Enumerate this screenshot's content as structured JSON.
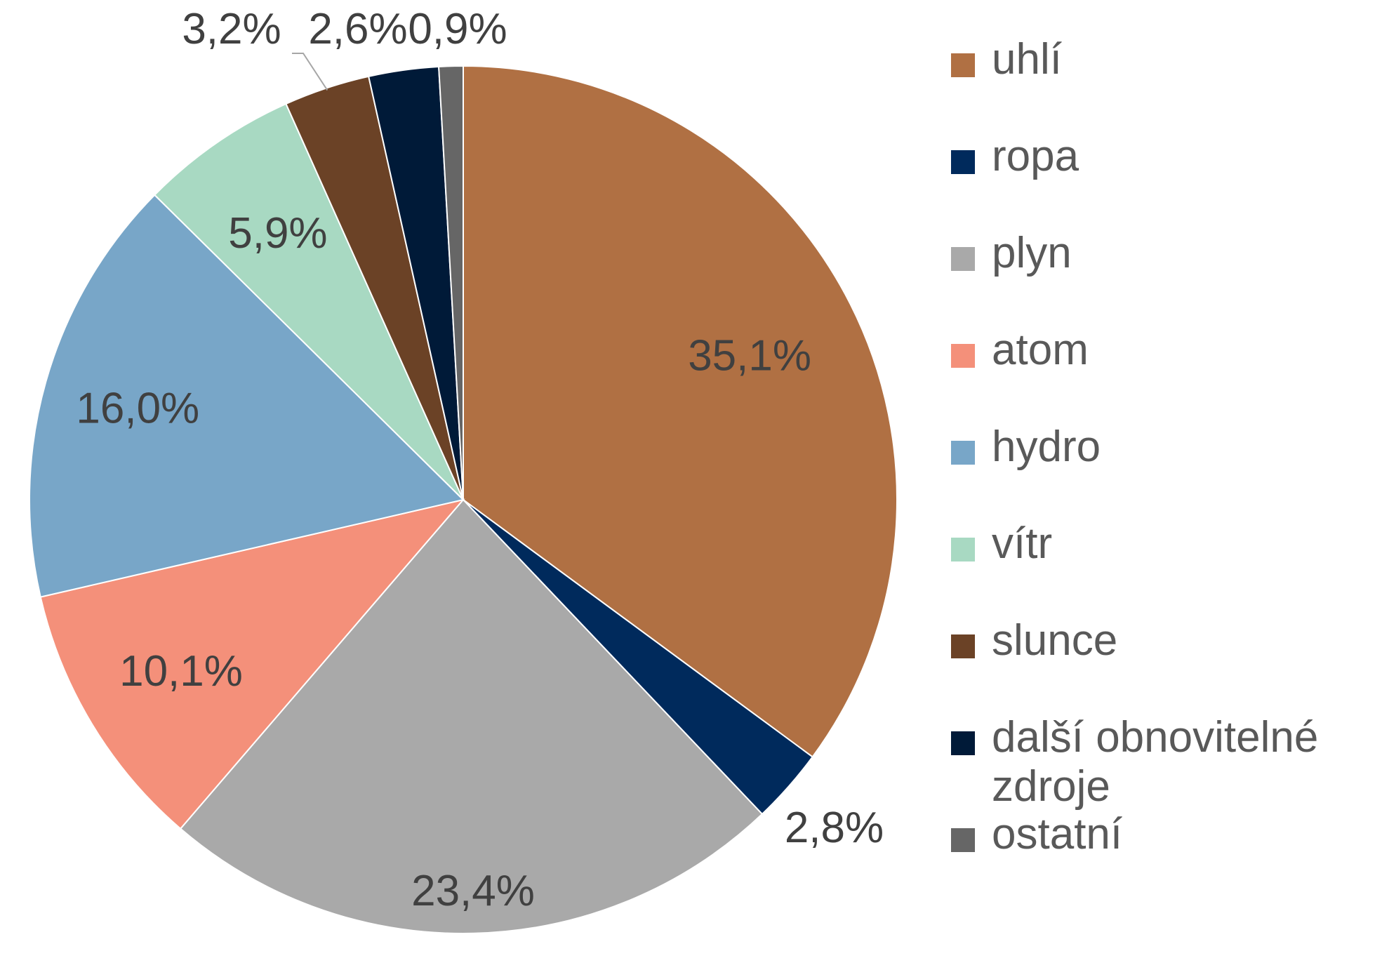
{
  "chart_data": {
    "type": "pie",
    "title": "",
    "slices": [
      {
        "name": "uhlí",
        "value": 35.1,
        "label": "35,1%",
        "color": "#B07043"
      },
      {
        "name": "ropa",
        "value": 2.8,
        "label": "2,8%",
        "color": "#002A5C"
      },
      {
        "name": "plyn",
        "value": 23.4,
        "label": "23,4%",
        "color": "#A9A9A9"
      },
      {
        "name": "atom",
        "value": 10.1,
        "label": "10,1%",
        "color": "#F4907A"
      },
      {
        "name": "hydro",
        "value": 16.0,
        "label": "16,0%",
        "color": "#78A6C8"
      },
      {
        "name": "vítr",
        "value": 5.9,
        "label": "5,9%",
        "color": "#A8D9C2"
      },
      {
        "name": "slunce",
        "value": 3.2,
        "label": "3,2%",
        "color": "#6B4226"
      },
      {
        "name": "další obnovitelné zdroje",
        "value": 2.6,
        "label": "2,6%",
        "color": "#001A38"
      },
      {
        "name": "ostatní",
        "value": 0.9,
        "label": "0,9%",
        "color": "#666666"
      }
    ],
    "legend_position": "right",
    "start_angle": "top",
    "direction": "clockwise"
  }
}
